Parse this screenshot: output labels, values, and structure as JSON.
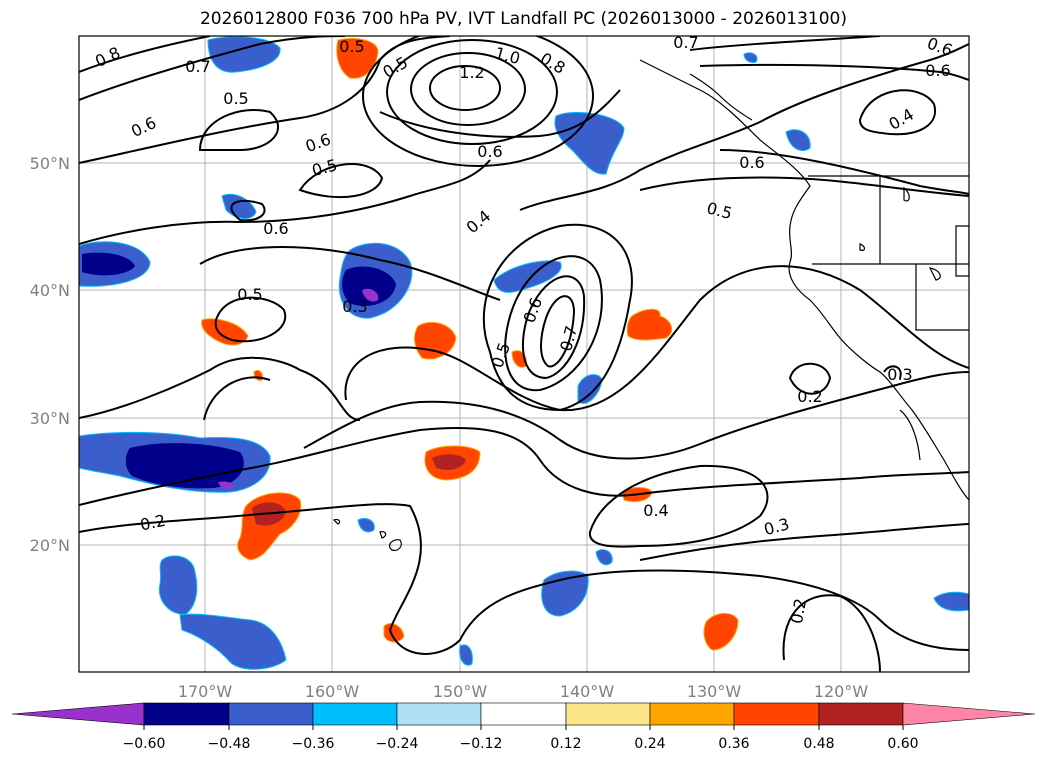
{
  "title": "2026012800 F036 700 hPa PV, IVT Landfall PC (2026013000 - 2026013100)",
  "lon_ticks": [
    "170°W",
    "160°W",
    "150°W",
    "140°W",
    "130°W",
    "120°W"
  ],
  "lat_ticks": [
    "50°N",
    "40°N",
    "30°N",
    "20°N"
  ],
  "colorbar": {
    "ticks": [
      "−0.60",
      "−0.48",
      "−0.36",
      "−0.24",
      "−0.12",
      "0.12",
      "0.24",
      "0.36",
      "0.48",
      "0.60"
    ],
    "colors": [
      "#9932cc",
      "#00008b",
      "#3a5fcd",
      "#00bfff",
      "#b0e0f5",
      "#ffffff",
      "#fde68a",
      "#ffa500",
      "#ff4500",
      "#b22222",
      "#ff85a8"
    ]
  },
  "contour_labels": [
    "0.8",
    "0.7",
    "0.5",
    "0.6",
    "0.5",
    "0.6",
    "0.5",
    "0.5",
    "1.0",
    "1.2",
    "0.8",
    "0.6",
    "0.7",
    "0.6",
    "0.4",
    "0.6",
    "0.6",
    "0.5",
    "0.4",
    "0.5",
    "0.6",
    "0.7",
    "0.5",
    "0.2",
    "0.3",
    "0.2",
    "0.4",
    "0.3",
    "0.2",
    "0.6"
  ]
}
